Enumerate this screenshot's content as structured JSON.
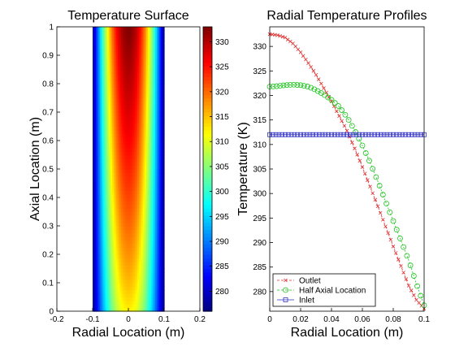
{
  "figure": {
    "background": "#ffffff"
  },
  "chart_data": [
    {
      "type": "heatmap",
      "title": "Temperature Surface",
      "xlabel": "Radial Location (m)",
      "ylabel": "Axial Location (m)",
      "xlim": [
        -0.2,
        0.2
      ],
      "ylim": [
        0,
        1
      ],
      "xticks": [
        "-0.2",
        "-0.1",
        "0",
        "0.1",
        "0.2"
      ],
      "yticks": [
        "0",
        "0.1",
        "0.2",
        "0.3",
        "0.4",
        "0.5",
        "0.6",
        "0.7",
        "0.8",
        "0.9",
        "1"
      ],
      "domain_x": [
        -0.1,
        0.1
      ],
      "colormap": "jet",
      "colorbar": {
        "range": [
          276,
          333
        ],
        "ticks": [
          "280",
          "285",
          "290",
          "295",
          "300",
          "305",
          "310",
          "315",
          "320",
          "325",
          "330"
        ]
      },
      "inlet_temperature": 312,
      "centerline_max": 333,
      "wall_temperature": 276
    },
    {
      "type": "line",
      "title": "Radial Temperature Profiles",
      "xlabel": "Radial Location (m)",
      "ylabel": "Temperature (K)",
      "xlim": [
        0,
        0.1
      ],
      "ylim": [
        276,
        334
      ],
      "xticks": [
        "0",
        "0.02",
        "0.04",
        "0.06",
        "0.08",
        "0.1"
      ],
      "yticks": [
        "280",
        "285",
        "290",
        "295",
        "300",
        "305",
        "310",
        "315",
        "320",
        "325",
        "330"
      ],
      "legend_position": "bottom-left",
      "series": [
        {
          "name": "Outlet",
          "color": "#e03030",
          "marker": "x",
          "x": [
            0,
            0.005,
            0.01,
            0.015,
            0.02,
            0.025,
            0.03,
            0.035,
            0.04,
            0.045,
            0.05,
            0.055,
            0.06,
            0.065,
            0.07,
            0.075,
            0.08,
            0.085,
            0.09,
            0.095,
            0.1
          ],
          "y": [
            332.5,
            332.3,
            331.8,
            330.6,
            328.8,
            326.6,
            324.2,
            321.5,
            318.8,
            315.8,
            312.8,
            309.2,
            305.4,
            301.4,
            297.4,
            293.3,
            289.2,
            285.2,
            281.2,
            278.3,
            276.5
          ]
        },
        {
          "name": "Half Axial Location",
          "color": "#1fc41f",
          "marker": "o",
          "x": [
            0,
            0.005,
            0.01,
            0.015,
            0.02,
            0.025,
            0.03,
            0.035,
            0.04,
            0.045,
            0.05,
            0.055,
            0.06,
            0.065,
            0.07,
            0.075,
            0.08,
            0.085,
            0.09,
            0.095,
            0.1
          ],
          "y": [
            321.8,
            321.9,
            322.1,
            322.2,
            322.1,
            321.8,
            321.1,
            320.2,
            319.1,
            317.7,
            315.6,
            312.9,
            309.8,
            306.3,
            302.5,
            298.4,
            294.4,
            290.4,
            286.4,
            281.6,
            277.2
          ]
        },
        {
          "name": "Inlet",
          "color": "#3333c8",
          "marker": "s",
          "x": [
            0,
            0.01,
            0.02,
            0.03,
            0.04,
            0.05,
            0.06,
            0.07,
            0.08,
            0.09,
            0.1
          ],
          "y": [
            312,
            312,
            312,
            312,
            312,
            312,
            312,
            312,
            312,
            312,
            312
          ]
        }
      ]
    }
  ]
}
